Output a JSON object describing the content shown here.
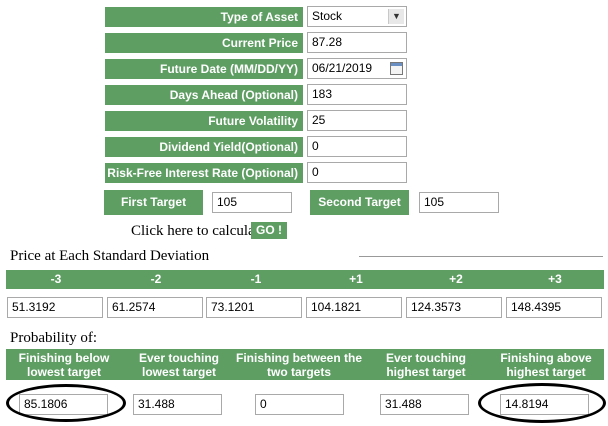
{
  "form": {
    "type_of_asset": {
      "label": "Type of Asset",
      "value": "Stock"
    },
    "current_price": {
      "label": "Current Price",
      "value": "87.28"
    },
    "future_date": {
      "label": "Future Date (MM/DD/YY)",
      "value": "06/21/2019"
    },
    "days_ahead": {
      "label": "Days Ahead (Optional)",
      "value": "183"
    },
    "future_volatility": {
      "label": "Future Volatility",
      "value": "25"
    },
    "dividend_yield": {
      "label": "Dividend Yield(Optional)",
      "value": "0"
    },
    "risk_free_rate": {
      "label": "Risk-Free Interest Rate (Optional)",
      "value": "0"
    },
    "first_target": {
      "label": "First Target",
      "value": "105"
    },
    "second_target": {
      "label": "Second Target",
      "value": "105"
    }
  },
  "calculate": {
    "text": "Click here to calculate",
    "button": "GO !"
  },
  "std_dev": {
    "title": "Price at Each Standard Deviation",
    "headers": [
      "-3",
      "-2",
      "-1",
      "+1",
      "+2",
      "+3"
    ],
    "values": [
      "51.3192",
      "61.2574",
      "73.1201",
      "104.1821",
      "124.3573",
      "148.4395"
    ]
  },
  "probability": {
    "title": "Probability of:",
    "headers": [
      "Finishing below lowest target",
      "Ever touching lowest target",
      "Finishing between the two targets",
      "Ever touching highest target",
      "Finishing above highest target"
    ],
    "values": [
      "85.1806",
      "31.488",
      "0",
      "31.488",
      "14.8194"
    ]
  },
  "colors": {
    "accent": "#5e9e63",
    "annotation": "#000000"
  }
}
